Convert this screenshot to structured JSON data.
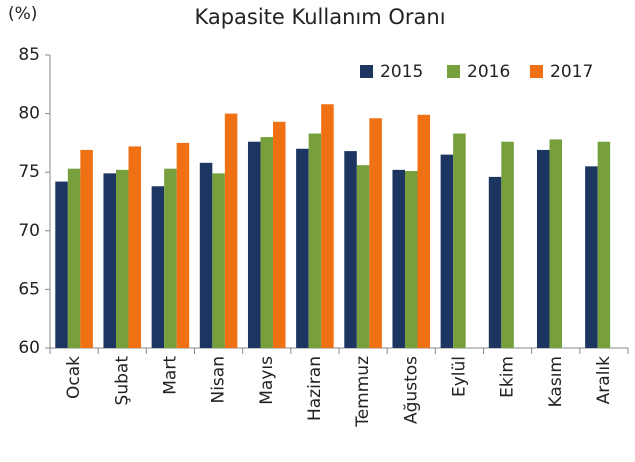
{
  "chart_data": {
    "type": "bar",
    "title": "Kapasite Kullanım Oranı",
    "y_label": "(%)",
    "categories": [
      "Ocak",
      "Şubat",
      "Mart",
      "Nisan",
      "Mayıs",
      "Haziran",
      "Temmuz",
      "Ağustos",
      "Eylül",
      "Ekim",
      "Kasım",
      "Aralık"
    ],
    "series": [
      {
        "name": "2015",
        "color": "#1c3661",
        "values": [
          74.2,
          74.9,
          73.8,
          75.8,
          77.6,
          77.0,
          76.8,
          75.2,
          76.5,
          74.6,
          76.9,
          75.5
        ]
      },
      {
        "name": "2016",
        "color": "#77a03c",
        "values": [
          75.3,
          75.2,
          75.3,
          74.9,
          78.0,
          78.3,
          75.6,
          75.1,
          78.3,
          77.6,
          77.8,
          77.6
        ]
      },
      {
        "name": "2017",
        "color": "#f07014",
        "values": [
          76.9,
          77.2,
          77.5,
          80.0,
          79.3,
          80.8,
          79.6,
          79.9,
          null,
          null,
          null,
          null
        ]
      }
    ],
    "ylim": [
      60,
      85
    ],
    "yticks": [
      60,
      65,
      70,
      75,
      80,
      85
    ],
    "grid": false,
    "legend": "top-right"
  }
}
